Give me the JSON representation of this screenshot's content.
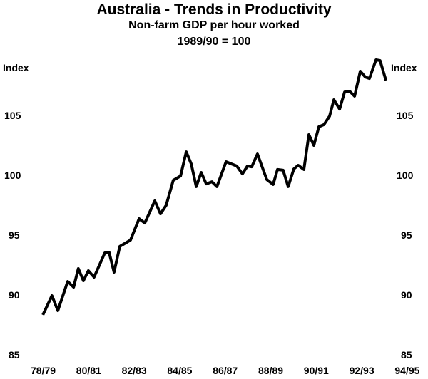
{
  "chart_data": {
    "type": "line",
    "title": "Australia - Trends in Productivity",
    "subtitle": [
      "Non-farm GDP per hour worked",
      "1989/90 = 100"
    ],
    "ylabel_left": "Index",
    "ylabel_right": "Index",
    "ylim": [
      85,
      110
    ],
    "y_ticks": [
      85,
      90,
      95,
      100,
      105
    ],
    "x_ticks": [
      {
        "label": "78/79",
        "x": 1978
      },
      {
        "label": "80/81",
        "x": 1980
      },
      {
        "label": "82/83",
        "x": 1982
      },
      {
        "label": "84/85",
        "x": 1984
      },
      {
        "label": "86/87",
        "x": 1986
      },
      {
        "label": "88/89",
        "x": 1988
      },
      {
        "label": "90/91",
        "x": 1990
      },
      {
        "label": "92/93",
        "x": 1992
      },
      {
        "label": "94/95",
        "x": 1994
      }
    ],
    "grid": false,
    "line_color": "#000000",
    "series": [
      {
        "points": [
          [
            1977.94,
            88.45
          ],
          [
            1978.34,
            90.06
          ],
          [
            1978.6,
            88.81
          ],
          [
            1979.03,
            91.25
          ],
          [
            1979.29,
            90.77
          ],
          [
            1979.5,
            92.32
          ],
          [
            1979.72,
            91.31
          ],
          [
            1979.94,
            92.14
          ],
          [
            1980.19,
            91.61
          ],
          [
            1980.66,
            93.63
          ],
          [
            1980.85,
            93.69
          ],
          [
            1981.07,
            92.02
          ],
          [
            1981.32,
            94.17
          ],
          [
            1981.79,
            94.7
          ],
          [
            1982.17,
            96.49
          ],
          [
            1982.42,
            96.13
          ],
          [
            1982.86,
            97.98
          ],
          [
            1983.11,
            96.9
          ],
          [
            1983.36,
            97.62
          ],
          [
            1983.67,
            99.7
          ],
          [
            1983.99,
            100.06
          ],
          [
            1984.24,
            102.08
          ],
          [
            1984.46,
            101.07
          ],
          [
            1984.68,
            99.17
          ],
          [
            1984.9,
            100.36
          ],
          [
            1985.12,
            99.4
          ],
          [
            1985.37,
            99.58
          ],
          [
            1985.59,
            99.17
          ],
          [
            1985.99,
            101.25
          ],
          [
            1986.46,
            100.89
          ],
          [
            1986.71,
            100.24
          ],
          [
            1986.93,
            100.89
          ],
          [
            1987.12,
            100.83
          ],
          [
            1987.37,
            101.9
          ],
          [
            1987.78,
            99.76
          ],
          [
            1988.06,
            99.35
          ],
          [
            1988.25,
            100.6
          ],
          [
            1988.5,
            100.54
          ],
          [
            1988.72,
            99.17
          ],
          [
            1988.97,
            100.65
          ],
          [
            1989.16,
            100.95
          ],
          [
            1989.41,
            100.6
          ],
          [
            1989.63,
            103.51
          ],
          [
            1989.85,
            102.62
          ],
          [
            1990.07,
            104.17
          ],
          [
            1990.29,
            104.35
          ],
          [
            1990.54,
            105.06
          ],
          [
            1990.73,
            106.43
          ],
          [
            1990.98,
            105.65
          ],
          [
            1991.2,
            107.08
          ],
          [
            1991.42,
            107.14
          ],
          [
            1991.64,
            106.73
          ],
          [
            1991.89,
            108.81
          ],
          [
            1992.11,
            108.33
          ],
          [
            1992.29,
            108.21
          ],
          [
            1992.58,
            109.76
          ],
          [
            1992.76,
            109.7
          ],
          [
            1993.02,
            108.04
          ]
        ]
      }
    ]
  }
}
